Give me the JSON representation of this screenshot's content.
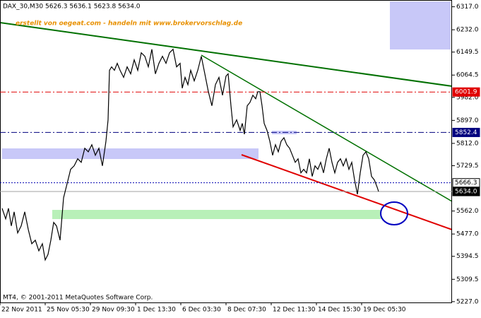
{
  "chart_data": {
    "type": "line",
    "title": "DAX_30,M30  5626.3 5636.1 5623.8 5634.0",
    "annotation": "erstellt von oegeat.com - handeln mit www.brokervorschlag.de",
    "copyright": "MT4, © 2001-2011 MetaQuotes Software Corp.",
    "xlim": [
      0,
      640
    ],
    "ylim": [
      5224,
      6342
    ],
    "xticks": [
      {
        "value": 0,
        "label": "22 Nov 2011"
      },
      {
        "value": 64,
        "label": "25 Nov 05:30"
      },
      {
        "value": 128,
        "label": "29 Nov 09:30"
      },
      {
        "value": 192,
        "label": "1 Dec 13:30"
      },
      {
        "value": 256,
        "label": "6 Dec 03:30"
      },
      {
        "value": 320,
        "label": "8 Dec 07:30"
      },
      {
        "value": 384,
        "label": "12 Dec 11:30"
      },
      {
        "value": 448,
        "label": "14 Dec 15:30"
      },
      {
        "value": 512,
        "label": "19 Dec 05:30"
      }
    ],
    "yticks": [
      {
        "value": 6317,
        "label": "6317.0"
      },
      {
        "value": 6232,
        "label": "6232.0"
      },
      {
        "value": 6149.5,
        "label": "6149.5"
      },
      {
        "value": 6064.5,
        "label": "6064.5"
      },
      {
        "value": 5982,
        "label": "5982.0"
      },
      {
        "value": 5897,
        "label": "5897.0"
      },
      {
        "value": 5812,
        "label": "5812.0"
      },
      {
        "value": 5729.5,
        "label": "5729.5"
      },
      {
        "value": 5562,
        "label": "5562.0"
      },
      {
        "value": 5477,
        "label": "5477.0"
      },
      {
        "value": 5394.5,
        "label": "5394.5"
      },
      {
        "value": 5309.5,
        "label": "5309.5"
      },
      {
        "value": 5227,
        "label": "5227.0"
      }
    ],
    "levels": [
      {
        "value": 6001.9,
        "color": "#e00000",
        "box": "#e00000",
        "text_color": "#ffffff",
        "dash": "8 3 2 3"
      },
      {
        "value": 5852.4,
        "color": "#00007f",
        "box": "#00007f",
        "text_color": "#ffffff",
        "dash": "8 3 2 3"
      },
      {
        "value": 5666.3,
        "color": "#0000b0",
        "box": "#ffffff",
        "text_color": "#000000",
        "dash": "2 2"
      },
      {
        "value": 5634,
        "label": "5634.0",
        "color": "#a0a0a0",
        "box": "#000000",
        "text_color": "#ffffff",
        "dash": "none"
      }
    ],
    "series": [
      {
        "name": "DAX_30",
        "color": "#000000",
        "x": [
          3,
          8,
          12,
          16,
          20,
          25,
          30,
          35,
          40,
          45,
          50,
          55,
          60,
          64,
          68,
          72,
          76,
          80,
          85,
          90,
          95,
          100,
          105,
          110,
          115,
          120,
          125,
          130,
          135,
          140,
          145,
          150,
          153,
          155,
          158,
          162,
          166,
          170,
          175,
          180,
          185,
          190,
          195,
          200,
          205,
          210,
          215,
          220,
          225,
          230,
          235,
          240,
          245,
          250,
          255,
          258,
          262,
          266,
          270,
          275,
          280,
          285,
          290,
          295,
          300,
          305,
          310,
          315,
          320,
          323,
          327,
          330,
          335,
          340,
          343,
          346,
          350,
          354,
          358,
          362,
          365,
          368,
          371,
          374,
          378,
          382,
          386,
          390,
          394,
          398,
          402,
          406,
          410,
          414,
          418,
          422,
          426,
          430,
          434,
          438,
          442,
          446,
          450,
          454,
          458,
          462,
          466,
          470,
          474,
          478,
          482,
          486,
          490,
          494,
          498,
          502,
          506,
          510,
          514,
          518,
          522,
          526,
          530,
          534,
          536
        ],
        "values": [
          5572,
          5533,
          5572,
          5507,
          5559,
          5481,
          5507,
          5559,
          5494,
          5441,
          5454,
          5415,
          5441,
          5381,
          5402,
          5454,
          5520,
          5507,
          5454,
          5611,
          5663,
          5716,
          5729,
          5755,
          5742,
          5794,
          5781,
          5807,
          5768,
          5794,
          5729,
          5820,
          5899,
          6082,
          6095,
          6082,
          6108,
          6082,
          6056,
          6095,
          6069,
          6121,
          6082,
          6147,
          6134,
          6095,
          6160,
          6069,
          6108,
          6134,
          6108,
          6147,
          6160,
          6095,
          6108,
          6016,
          6056,
          6029,
          6082,
          6043,
          6082,
          6134,
          6069,
          6003,
          5951,
          6029,
          6056,
          5990,
          6061,
          6069,
          5951,
          5873,
          5899,
          5860,
          5886,
          5846,
          5951,
          5964,
          5990,
          5977,
          6003,
          6003,
          5951,
          5886,
          5860,
          5820,
          5768,
          5807,
          5781,
          5820,
          5833,
          5807,
          5794,
          5768,
          5742,
          5755,
          5703,
          5716,
          5703,
          5755,
          5690,
          5729,
          5716,
          5742,
          5703,
          5755,
          5794,
          5742,
          5703,
          5742,
          5755,
          5729,
          5755,
          5716,
          5742,
          5677,
          5624,
          5703,
          5768,
          5781,
          5755,
          5690,
          5677,
          5650,
          5634
        ]
      }
    ]
  }
}
